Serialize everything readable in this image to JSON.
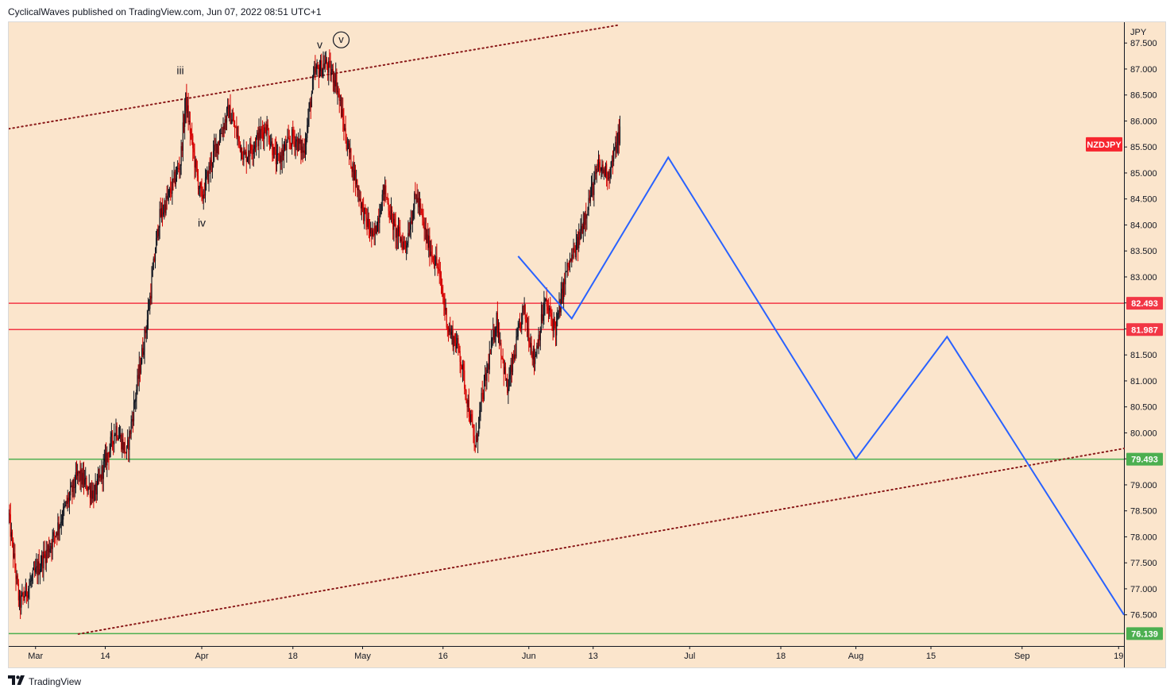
{
  "header": {
    "publisher_text": "CyclicalWaves published on TradingView.com, Jun 07, 2022 08:51 UTC+1"
  },
  "footer": {
    "brand_icon": "tradingview-logo-icon",
    "brand": "TradingView"
  },
  "colors": {
    "background": "#fbe5cc",
    "resistance": "#f23645",
    "support": "#4caf50",
    "projection": "#2962ff",
    "channel": "#8b1a1a",
    "candle_up": "#131722",
    "candle_down": "#d50000",
    "symbol_badge": "#f7252e"
  },
  "chart_data": {
    "type": "candlestick",
    "symbol": "NZDJPY",
    "currency_label": "JPY",
    "x_axis": {
      "tick_labels": [
        "Mar",
        "14",
        "Apr",
        "18",
        "May",
        "16",
        "Jun",
        "13",
        "Jul",
        "18",
        "Aug",
        "15",
        "Sep",
        "19"
      ],
      "tick_dates": [
        "2022-03-01",
        "2022-03-14",
        "2022-04-01",
        "2022-04-18",
        "2022-05-01",
        "2022-05-16",
        "2022-06-01",
        "2022-06-13",
        "2022-07-01",
        "2022-07-18",
        "2022-08-01",
        "2022-08-15",
        "2022-09-01",
        "2022-09-19"
      ],
      "range": [
        "2022-02-24",
        "2022-09-20"
      ]
    },
    "y_axis": {
      "range": [
        75.9,
        87.9
      ],
      "tick_values": [
        76.5,
        77.0,
        77.5,
        78.0,
        78.5,
        79.0,
        79.5,
        80.0,
        80.5,
        81.0,
        81.5,
        82.0,
        82.5,
        83.0,
        83.5,
        84.0,
        84.5,
        85.0,
        85.5,
        86.0,
        86.5,
        87.0,
        87.5
      ],
      "tick_labels": [
        "76.500",
        "77.000",
        "77.500",
        "78.000",
        "78.500",
        "79.000",
        "79.500",
        "80.000",
        "80.500",
        "81.000",
        "81.500",
        "82.000",
        "82.500",
        "83.000",
        "83.500",
        "84.000",
        "84.500",
        "85.000",
        "85.500",
        "86.000",
        "86.500",
        "87.000",
        "87.500"
      ]
    },
    "horizontal_levels": [
      {
        "value": 82.493,
        "label": "82.493",
        "kind": "resistance"
      },
      {
        "value": 81.987,
        "label": "81.987",
        "kind": "resistance"
      },
      {
        "value": 79.493,
        "label": "79.493",
        "kind": "support"
      },
      {
        "value": 76.139,
        "label": "76.139",
        "kind": "support"
      }
    ],
    "channel_lines": [
      {
        "points": [
          {
            "date": "2022-02-24",
            "value": 85.85
          },
          {
            "date": "2022-06-18",
            "value": 87.85
          }
        ]
      },
      {
        "points": [
          {
            "date": "2022-03-09",
            "value": 76.13
          },
          {
            "date": "2022-09-20",
            "value": 79.7
          }
        ]
      }
    ],
    "projection_path": [
      {
        "date": "2022-05-30",
        "value": 83.4
      },
      {
        "date": "2022-06-09",
        "value": 82.2
      },
      {
        "date": "2022-06-27",
        "value": 85.3
      },
      {
        "date": "2022-08-01",
        "value": 79.5
      },
      {
        "date": "2022-08-18",
        "value": 81.85
      },
      {
        "date": "2022-09-20",
        "value": 76.5
      }
    ],
    "wave_labels": [
      {
        "text": "iii",
        "date": "2022-03-28",
        "value": 86.9
      },
      {
        "text": "iv",
        "date": "2022-04-01",
        "value": 83.97
      },
      {
        "text": "v",
        "date": "2022-04-23",
        "value": 87.4
      },
      {
        "text": "v",
        "date": "2022-04-27",
        "value": 87.5,
        "circled": true
      }
    ],
    "last_price_badge": {
      "text": "NZDJPY",
      "value": 85.55
    },
    "price_anchors": [
      {
        "date": "2022-02-24",
        "value": 78.4
      },
      {
        "date": "2022-02-26",
        "value": 76.7
      },
      {
        "date": "2022-03-04",
        "value": 77.9
      },
      {
        "date": "2022-03-09",
        "value": 79.2
      },
      {
        "date": "2022-03-12",
        "value": 78.8
      },
      {
        "date": "2022-03-16",
        "value": 80.1
      },
      {
        "date": "2022-03-18",
        "value": 79.6
      },
      {
        "date": "2022-03-22",
        "value": 82.3
      },
      {
        "date": "2022-03-24",
        "value": 84.1
      },
      {
        "date": "2022-03-26",
        "value": 84.6
      },
      {
        "date": "2022-03-28",
        "value": 85.2
      },
      {
        "date": "2022-03-29",
        "value": 86.4
      },
      {
        "date": "2022-03-31",
        "value": 85.0
      },
      {
        "date": "2022-04-01",
        "value": 84.5
      },
      {
        "date": "2022-04-03",
        "value": 85.3
      },
      {
        "date": "2022-04-06",
        "value": 86.2
      },
      {
        "date": "2022-04-09",
        "value": 85.3
      },
      {
        "date": "2022-04-13",
        "value": 85.9
      },
      {
        "date": "2022-04-15",
        "value": 85.2
      },
      {
        "date": "2022-04-18",
        "value": 85.7
      },
      {
        "date": "2022-04-20",
        "value": 85.4
      },
      {
        "date": "2022-04-22",
        "value": 86.9
      },
      {
        "date": "2022-04-24",
        "value": 87.1
      },
      {
        "date": "2022-04-26",
        "value": 86.8
      },
      {
        "date": "2022-04-28",
        "value": 85.6
      },
      {
        "date": "2022-05-01",
        "value": 84.3
      },
      {
        "date": "2022-05-03",
        "value": 83.7
      },
      {
        "date": "2022-05-05",
        "value": 84.7
      },
      {
        "date": "2022-05-07",
        "value": 83.9
      },
      {
        "date": "2022-05-09",
        "value": 83.6
      },
      {
        "date": "2022-05-11",
        "value": 84.6
      },
      {
        "date": "2022-05-13",
        "value": 83.7
      },
      {
        "date": "2022-05-15",
        "value": 83.2
      },
      {
        "date": "2022-05-17",
        "value": 82.0
      },
      {
        "date": "2022-05-19",
        "value": 81.6
      },
      {
        "date": "2022-05-22",
        "value": 79.7
      },
      {
        "date": "2022-05-23",
        "value": 80.5
      },
      {
        "date": "2022-05-26",
        "value": 82.2
      },
      {
        "date": "2022-05-28",
        "value": 80.8
      },
      {
        "date": "2022-05-31",
        "value": 82.4
      },
      {
        "date": "2022-06-02",
        "value": 81.4
      },
      {
        "date": "2022-06-04",
        "value": 82.5
      },
      {
        "date": "2022-06-06",
        "value": 82.0
      },
      {
        "date": "2022-06-08",
        "value": 83.1
      },
      {
        "date": "2022-06-10",
        "value": 83.6
      },
      {
        "date": "2022-06-12",
        "value": 84.4
      },
      {
        "date": "2022-06-14",
        "value": 85.1
      },
      {
        "date": "2022-06-16",
        "value": 85.0
      },
      {
        "date": "2022-06-18",
        "value": 85.8
      }
    ]
  }
}
